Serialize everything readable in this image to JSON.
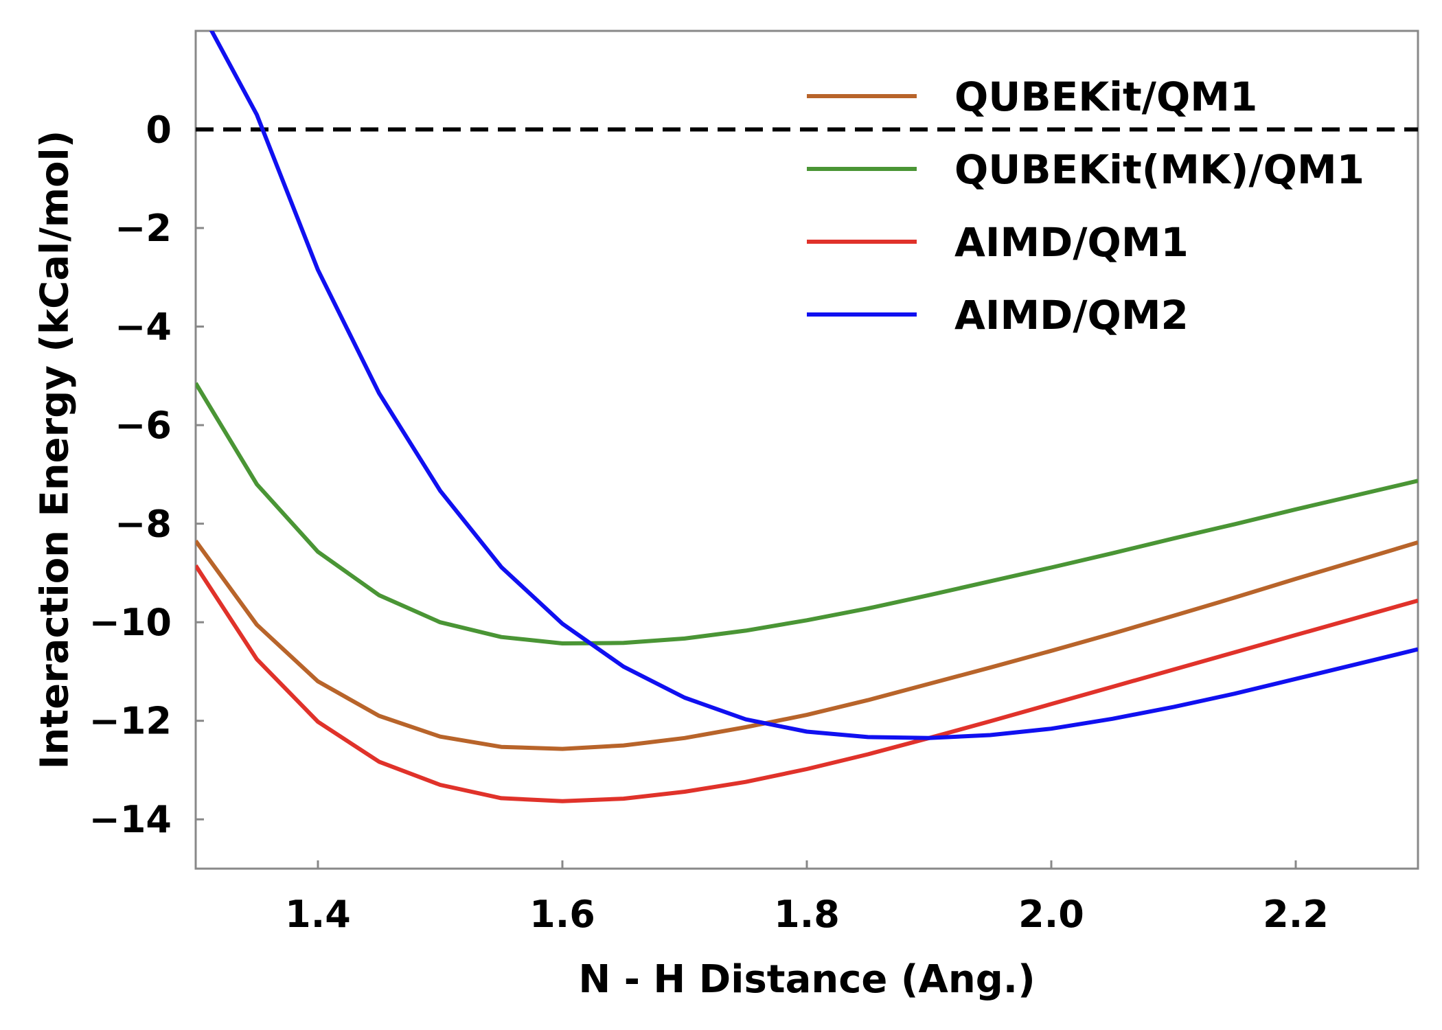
{
  "chart_data": {
    "type": "line",
    "title": "",
    "xlabel": "N - H Distance (Ang.)",
    "ylabel": "Interaction Energy (kCal/mol)",
    "xlim": [
      1.3,
      2.3
    ],
    "ylim": [
      -15,
      2
    ],
    "x_ticks": [
      1.4,
      1.6,
      1.8,
      2.0,
      2.2
    ],
    "x_tick_labels": [
      "1.4",
      "1.6",
      "1.8",
      "2.0",
      "2.2"
    ],
    "y_ticks": [
      0,
      -2,
      -4,
      -6,
      -8,
      -10,
      -12,
      -14
    ],
    "y_tick_labels": [
      "0",
      "−2",
      "−4",
      "−6",
      "−8",
      "−10",
      "−12",
      "−14"
    ],
    "grid": false,
    "legend_position": "top-right",
    "reference_line": {
      "y": 0,
      "style": "dashed",
      "color": "#000000"
    },
    "x": [
      1.3,
      1.35,
      1.4,
      1.45,
      1.5,
      1.55,
      1.6,
      1.65,
      1.7,
      1.75,
      1.8,
      1.85,
      1.9,
      1.95,
      2.0,
      2.05,
      2.1,
      2.15,
      2.2,
      2.25,
      2.3
    ],
    "series": [
      {
        "name": "QUBEKit/QM1",
        "color": "#b8642a",
        "values": [
          -8.35,
          -10.05,
          -11.2,
          -11.9,
          -12.32,
          -12.53,
          -12.57,
          -12.5,
          -12.35,
          -12.13,
          -11.88,
          -11.58,
          -11.25,
          -10.92,
          -10.58,
          -10.23,
          -9.87,
          -9.5,
          -9.12,
          -8.75,
          -8.38
        ]
      },
      {
        "name": "QUBEKit(MK)/QM1",
        "color": "#4a9535",
        "values": [
          -5.15,
          -7.2,
          -8.57,
          -9.45,
          -10.0,
          -10.3,
          -10.43,
          -10.42,
          -10.33,
          -10.17,
          -9.96,
          -9.72,
          -9.45,
          -9.17,
          -8.89,
          -8.6,
          -8.3,
          -8.01,
          -7.71,
          -7.42,
          -7.13
        ]
      },
      {
        "name": "AIMD/QM1",
        "color": "#e0322a",
        "values": [
          -8.85,
          -10.75,
          -12.02,
          -12.83,
          -13.3,
          -13.57,
          -13.63,
          -13.58,
          -13.44,
          -13.24,
          -12.98,
          -12.68,
          -12.35,
          -12.01,
          -11.66,
          -11.31,
          -10.96,
          -10.61,
          -10.26,
          -9.91,
          -9.56
        ]
      },
      {
        "name": "AIMD/QM2",
        "color": "#1010f0",
        "values": [
          2.6,
          0.3,
          -2.85,
          -5.35,
          -7.33,
          -8.88,
          -10.03,
          -10.9,
          -11.53,
          -11.97,
          -12.22,
          -12.33,
          -12.35,
          -12.29,
          -12.16,
          -11.96,
          -11.72,
          -11.45,
          -11.15,
          -10.85,
          -10.55
        ]
      }
    ]
  }
}
